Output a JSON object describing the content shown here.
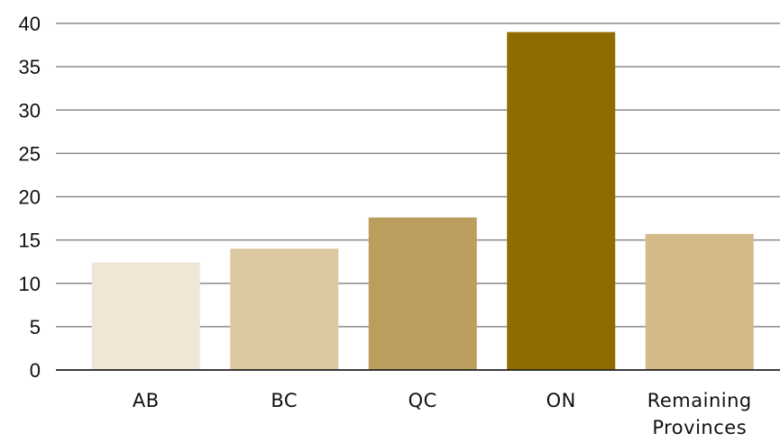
{
  "chart_data": {
    "type": "bar",
    "title": "",
    "xlabel": "",
    "ylabel": "",
    "categories": [
      [
        "AB"
      ],
      [
        "BC"
      ],
      [
        "QC"
      ],
      [
        "ON"
      ],
      [
        "Remaining",
        "Provinces"
      ]
    ],
    "values": [
      12.4,
      14.0,
      17.6,
      39.0,
      15.7
    ],
    "colors": [
      "#f0e6d6",
      "#ddc9a0",
      "#bb9e5e",
      "#8f6c00",
      "#d4ba88"
    ],
    "ylim": [
      0,
      40
    ],
    "yticks": [
      0,
      5,
      10,
      15,
      20,
      25,
      30,
      35,
      40
    ],
    "grid": true,
    "legend": "none"
  }
}
